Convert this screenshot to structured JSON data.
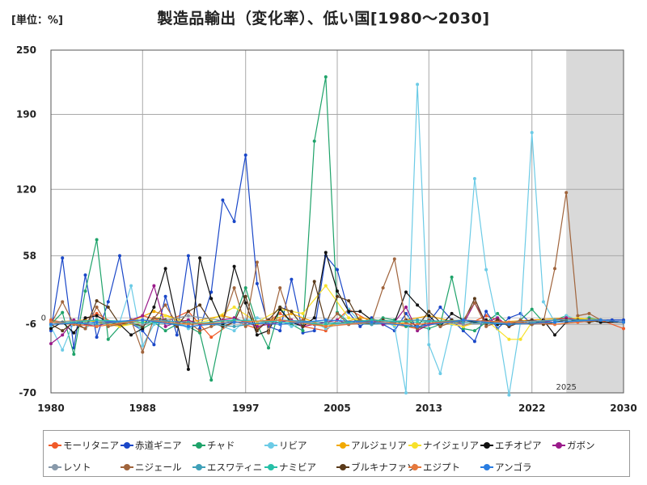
{
  "unit_label": "[単位：%]",
  "chart_data": {
    "type": "line",
    "title": "製造品輸出（変化率）、低い国[1980～2030]",
    "xlabel": "",
    "ylabel": "",
    "xlim": [
      1980,
      2030
    ],
    "ylim": [
      -70,
      250
    ],
    "x_ticks": [
      "1980",
      "1988",
      "1997",
      "2005",
      "2013",
      "2022",
      "2030"
    ],
    "y_ticks": [
      "250",
      "190",
      "120",
      "58",
      "-6",
      "-70"
    ],
    "zero_label": "0",
    "forecast_start": 2025,
    "forecast_label": "2025",
    "grid": true,
    "legend_position": "bottom",
    "series": [
      {
        "name": "モーリタニア",
        "color": "#f05a28",
        "x": [
          1980,
          1982,
          1984,
          1986,
          1988,
          1990,
          1992,
          1994,
          1996,
          1998,
          2000,
          2002,
          2004,
          2006,
          2008,
          2010,
          2012,
          2014,
          2016,
          2018,
          2020,
          2022,
          2024,
          2026,
          2028,
          2030
        ],
        "y": [
          -2,
          -6,
          4,
          -8,
          2,
          -4,
          6,
          -18,
          -3,
          -10,
          4,
          -8,
          -12,
          8,
          -4,
          -6,
          -10,
          -4,
          -8,
          2,
          -6,
          -2,
          -6,
          -4,
          -2,
          -10
        ]
      },
      {
        "name": "赤道ギニア",
        "color": "#1a47c8",
        "x": [
          1980,
          1981,
          1982,
          1983,
          1984,
          1985,
          1986,
          1987,
          1988,
          1989,
          1990,
          1991,
          1992,
          1993,
          1994,
          1995,
          1996,
          1997,
          1998,
          1999,
          2000,
          2001,
          2002,
          2003,
          2004,
          2005,
          2006,
          2007,
          2008,
          2009,
          2010,
          2011,
          2012,
          2013,
          2014,
          2015,
          2016,
          2017,
          2018,
          2019,
          2020,
          2021,
          2022,
          2023,
          2024,
          2025,
          2026,
          2027,
          2028,
          2029,
          2030
        ],
        "y": [
          -12,
          56,
          -28,
          40,
          -18,
          15,
          58,
          -5,
          -12,
          -25,
          20,
          -16,
          58,
          -10,
          24,
          110,
          90,
          152,
          32,
          -8,
          -12,
          36,
          -14,
          -12,
          58,
          45,
          5,
          -8,
          0,
          -6,
          -12,
          4,
          -10,
          -4,
          10,
          -2,
          -12,
          -22,
          6,
          -10,
          0,
          4,
          -6,
          -4,
          -2,
          0,
          -2,
          -2,
          -2,
          -2,
          -2
        ]
      },
      {
        "name": "チャド",
        "color": "#1fa36a",
        "x": [
          1980,
          1981,
          1982,
          1983,
          1984,
          1985,
          1986,
          1987,
          1988,
          1989,
          1990,
          1991,
          1992,
          1993,
          1994,
          1995,
          1996,
          1997,
          1998,
          1999,
          2000,
          2001,
          2002,
          2003,
          2004,
          2005,
          2006,
          2007,
          2008,
          2009,
          2010,
          2011,
          2012,
          2013,
          2014,
          2015,
          2016,
          2017,
          2018,
          2019,
          2020,
          2021,
          2022,
          2023,
          2024,
          2025,
          2026,
          2027,
          2028,
          2030
        ],
        "y": [
          -6,
          5,
          -34,
          25,
          73,
          -20,
          -8,
          -4,
          -10,
          -4,
          -12,
          -6,
          -8,
          -14,
          -58,
          -6,
          -2,
          28,
          -6,
          -28,
          10,
          -6,
          -12,
          165,
          225,
          5,
          -4,
          -2,
          -6,
          0,
          -2,
          -8,
          -8,
          -10,
          -6,
          38,
          -10,
          -12,
          -4,
          4,
          -6,
          -2,
          8,
          -4,
          -2,
          2,
          -2,
          0,
          -2,
          -4
        ]
      },
      {
        "name": "リビア",
        "color": "#6ccbe6",
        "x": [
          1980,
          1981,
          1982,
          1983,
          1984,
          1985,
          1986,
          1987,
          1988,
          1989,
          1990,
          1991,
          1992,
          1993,
          1994,
          1995,
          1996,
          1997,
          1998,
          1999,
          2000,
          2001,
          2002,
          2003,
          2004,
          2005,
          2006,
          2007,
          2008,
          2009,
          2010,
          2011,
          2012,
          2013,
          2014,
          2015,
          2016,
          2017,
          2018,
          2019,
          2020,
          2021,
          2022,
          2023,
          2024,
          2025,
          2026,
          2027,
          2028,
          2030
        ],
        "y": [
          -8,
          -30,
          -4,
          -10,
          -2,
          -6,
          -4,
          30,
          -26,
          -6,
          -2,
          -4,
          -10,
          -6,
          -4,
          -8,
          -12,
          -2,
          0,
          -4,
          -2,
          -8,
          -6,
          -4,
          -10,
          -6,
          8,
          -4,
          -6,
          -2,
          -8,
          -70,
          218,
          -25,
          -52,
          -6,
          -4,
          130,
          45,
          -6,
          -72,
          -4,
          173,
          15,
          -4,
          2,
          -2,
          -2,
          -2,
          -4
        ]
      },
      {
        "name": "アルジェリア",
        "color": "#f2a900",
        "x": [
          1980,
          1983,
          1986,
          1989,
          1992,
          1995,
          1998,
          2001,
          2004,
          2007,
          2010,
          2013,
          2016,
          2019,
          2022,
          2025,
          2028,
          2030
        ],
        "y": [
          -4,
          -2,
          -8,
          6,
          -4,
          2,
          -6,
          4,
          -8,
          0,
          -4,
          2,
          -6,
          -4,
          -2,
          0,
          -2,
          -4
        ]
      },
      {
        "name": "ナイジェリア",
        "color": "#f7e12a",
        "x": [
          1980,
          1982,
          1984,
          1986,
          1988,
          1990,
          1992,
          1994,
          1996,
          1998,
          2000,
          2002,
          2004,
          2006,
          2008,
          2010,
          2012,
          2014,
          2016,
          2018,
          2020,
          2021,
          2022,
          2024,
          2026,
          2028,
          2030
        ],
        "y": [
          -4,
          -6,
          -2,
          -8,
          -4,
          2,
          -6,
          -2,
          10,
          -4,
          8,
          4,
          30,
          0,
          -4,
          -6,
          -2,
          -4,
          -8,
          -2,
          -20,
          -20,
          -4,
          -2,
          0,
          -2,
          -4
        ]
      },
      {
        "name": "エチオピア",
        "color": "#111111",
        "x": [
          1980,
          1981,
          1982,
          1983,
          1984,
          1985,
          1986,
          1987,
          1988,
          1989,
          1990,
          1991,
          1992,
          1993,
          1994,
          1995,
          1996,
          1997,
          1998,
          1999,
          2000,
          2001,
          2002,
          2003,
          2004,
          2005,
          2006,
          2007,
          2008,
          2009,
          2010,
          2011,
          2012,
          2013,
          2014,
          2015,
          2016,
          2017,
          2018,
          2019,
          2020,
          2021,
          2022,
          2023,
          2024,
          2025,
          2026,
          2027,
          2028,
          2030
        ],
        "y": [
          -10,
          -4,
          -14,
          0,
          2,
          -4,
          -6,
          -16,
          -10,
          10,
          46,
          -4,
          -48,
          56,
          18,
          -6,
          48,
          14,
          -16,
          -12,
          8,
          -4,
          -8,
          0,
          61,
          25,
          6,
          6,
          -2,
          -6,
          -4,
          24,
          12,
          2,
          -8,
          4,
          -2,
          -4,
          -2,
          -6,
          -6,
          -4,
          -6,
          -2,
          -16,
          -4,
          -2,
          -2,
          -4,
          -4
        ]
      },
      {
        "name": "ガボン",
        "color": "#9a1a8a",
        "x": [
          1980,
          1981,
          1982,
          1983,
          1984,
          1985,
          1986,
          1987,
          1988,
          1989,
          1990,
          1991,
          1992,
          1993,
          1994,
          1995,
          1996,
          1997,
          1998,
          1999,
          2000,
          2001,
          2002,
          2003,
          2004,
          2005,
          2006,
          2007,
          2008,
          2009,
          2010,
          2011,
          2012,
          2013,
          2014,
          2015,
          2016,
          2017,
          2018,
          2019,
          2020,
          2021,
          2022,
          2023,
          2024,
          2025,
          2026,
          2027,
          2028,
          2030
        ],
        "y": [
          -24,
          -16,
          -2,
          -6,
          -8,
          -4,
          -4,
          -2,
          2,
          30,
          -8,
          -4,
          -2,
          -6,
          -4,
          -2,
          0,
          -4,
          -8,
          -6,
          -4,
          -2,
          -8,
          -6,
          -4,
          -2,
          -6,
          -4,
          -2,
          -6,
          -4,
          10,
          -12,
          -6,
          -4,
          -2,
          -6,
          14,
          -4,
          0,
          -8,
          -4,
          -2,
          -4,
          -2,
          0,
          -2,
          -2,
          -2,
          -4
        ]
      },
      {
        "name": "ブルキナファソ",
        "color": "#5a3a1a",
        "x": [
          1980,
          1981,
          1982,
          1983,
          1984,
          1985,
          1986,
          1987,
          1988,
          1989,
          1990,
          1991,
          1992,
          1993,
          1994,
          1995,
          1996,
          1997,
          1998,
          1999,
          2000,
          2001,
          2002,
          2003,
          2004,
          2005,
          2006,
          2007,
          2008,
          2009,
          2010,
          2011,
          2012,
          2013,
          2014,
          2015,
          2016,
          2017,
          2018,
          2019,
          2020,
          2021,
          2022,
          2023,
          2024,
          2025,
          2026,
          2027,
          2028,
          2030
        ],
        "y": [
          -6,
          -12,
          -4,
          -10,
          16,
          10,
          -6,
          -4,
          -8,
          0,
          -2,
          -8,
          6,
          12,
          -4,
          -8,
          -4,
          20,
          -12,
          -2,
          10,
          6,
          -8,
          34,
          -6,
          20,
          16,
          -4,
          -6,
          -2,
          -4,
          -2,
          -8,
          6,
          -4,
          -2,
          -4,
          18,
          -6,
          -2,
          -8,
          -4,
          -2,
          -6,
          -4,
          -2,
          -2,
          -4,
          -2,
          -4
        ]
      },
      {
        "name": "ニジェール",
        "color": "#a0643c",
        "x": [
          1980,
          1981,
          1982,
          1983,
          1984,
          1985,
          1986,
          1987,
          1988,
          1989,
          1990,
          1991,
          1992,
          1993,
          1994,
          1995,
          1996,
          1997,
          1998,
          1999,
          2000,
          2001,
          2002,
          2003,
          2004,
          2005,
          2006,
          2007,
          2008,
          2009,
          2010,
          2011,
          2012,
          2013,
          2014,
          2015,
          2016,
          2017,
          2018,
          2019,
          2020,
          2021,
          2022,
          2023,
          2024,
          2025,
          2026,
          2027,
          2028,
          2030
        ],
        "y": [
          -6,
          15,
          -6,
          -10,
          10,
          -8,
          -6,
          -2,
          -32,
          0,
          12,
          -6,
          -4,
          -12,
          -8,
          -4,
          28,
          -8,
          52,
          -14,
          28,
          -4,
          -2,
          -6,
          -8,
          4,
          -6,
          -2,
          -4,
          28,
          55,
          -4,
          -10,
          -2,
          -8,
          -4,
          -2,
          14,
          -8,
          -4,
          -6,
          -2,
          -6,
          -4,
          46,
          117,
          2,
          4,
          -2,
          -4
        ]
      },
      {
        "name": "レソト",
        "color": "#8899aa",
        "x": [
          1980,
          1984,
          1988,
          1992,
          1996,
          2000,
          2004,
          2008,
          2012,
          2016,
          2020,
          2024,
          2028,
          2030
        ],
        "y": [
          -4,
          -2,
          -6,
          2,
          -4,
          -2,
          -6,
          -4,
          -2,
          -6,
          -4,
          -2,
          -2,
          -4
        ]
      },
      {
        "name": "エスワティニ",
        "color": "#3fa0b8",
        "x": [
          1980,
          1984,
          1988,
          1992,
          1996,
          2000,
          2004,
          2008,
          2012,
          2016,
          2020,
          2024,
          2028,
          2030
        ],
        "y": [
          -4,
          -6,
          -2,
          -4,
          -8,
          -2,
          -4,
          -6,
          -2,
          -4,
          -6,
          -2,
          -2,
          -4
        ]
      },
      {
        "name": "ナミビア",
        "color": "#26c0a8",
        "x": [
          1980,
          1984,
          1988,
          1992,
          1996,
          2000,
          2004,
          2008,
          2012,
          2016,
          2020,
          2024,
          2028,
          2030
        ],
        "y": [
          -6,
          -2,
          -4,
          -6,
          -2,
          -4,
          -6,
          -2,
          -4,
          -2,
          -6,
          -4,
          -2,
          -4
        ]
      },
      {
        "name": "エジプト",
        "color": "#e6783c",
        "x": [
          1980,
          1984,
          1988,
          1992,
          1996,
          2000,
          2004,
          2008,
          2012,
          2016,
          2020,
          2024,
          2028,
          2030
        ],
        "y": [
          -4,
          -8,
          -2,
          -6,
          -4,
          -2,
          -8,
          -4,
          -6,
          -2,
          -4,
          -6,
          -2,
          -4
        ]
      },
      {
        "name": "アンゴラ",
        "color": "#2a7de1",
        "x": [
          1980,
          1984,
          1988,
          1992,
          1996,
          2000,
          2004,
          2008,
          2012,
          2016,
          2020,
          2024,
          2028,
          2030
        ],
        "y": [
          -6,
          -4,
          -2,
          -8,
          -4,
          -6,
          -2,
          -4,
          -8,
          -2,
          -6,
          -4,
          -2,
          -4
        ]
      }
    ]
  },
  "legend_order": [
    "モーリタニア",
    "赤道ギニア",
    "チャド",
    "リビア",
    "アルジェリア",
    "ナイジェリア",
    "エチオピア",
    "ガボン",
    "レソト",
    "ニジェール",
    "エスワティニ",
    "ナミビア",
    "ブルキナファソ",
    "エジプト",
    "アンゴラ"
  ]
}
